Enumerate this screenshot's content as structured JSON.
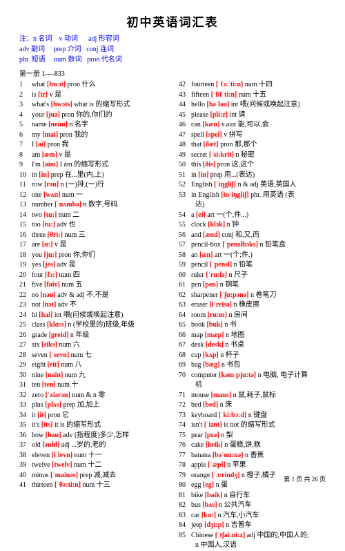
{
  "title": "初中英语词汇表",
  "legend": {
    "line1_parts": [
      {
        "t": "注：",
        "c": "#0000ff"
      },
      {
        "t": "n 名词",
        "c": "#0000ff"
      },
      {
        "t": "    ",
        "c": "#000"
      },
      {
        "t": "v 动词",
        "c": "#0000ff"
      },
      {
        "t": "      ",
        "c": "#000"
      },
      {
        "t": "adj 形容词",
        "c": "#0000ff"
      }
    ],
    "line2_parts": [
      {
        "t": "adv 副词",
        "c": "#0000ff"
      },
      {
        "t": "     ",
        "c": "#000"
      },
      {
        "t": "prep 介词",
        "c": "#0000ff"
      },
      {
        "t": "   ",
        "c": "#000"
      },
      {
        "t": "conj 连词",
        "c": "#0000ff"
      }
    ],
    "line3_parts": [
      {
        "t": "phr. 短语",
        "c": "#0000ff"
      },
      {
        "t": "     ",
        "c": "#000"
      },
      {
        "t": "num 数词",
        "c": "#0000ff"
      },
      {
        "t": "   ",
        "c": "#000"
      },
      {
        "t": "pron 代名词",
        "c": "#0000ff"
      }
    ]
  },
  "section": "第一册  1----833",
  "col1": [
    {
      "n": "1",
      "w": "what",
      "p": "[hwɔt]",
      "r": "pron 什么"
    },
    {
      "n": "2",
      "w": "is",
      "p": "[iz]",
      "r": "v 是"
    },
    {
      "n": "3",
      "w": "what's",
      "p": "[hwɔts]",
      "r": "what is 的缩写形式"
    },
    {
      "n": "4",
      "w": "your",
      "p": "[juə]",
      "r": "pron 你的,你们的"
    },
    {
      "n": "5",
      "w": "name",
      "p": "[neim]",
      "r": "n 名字"
    },
    {
      "n": "6",
      "w": "my",
      "p": "[mai]",
      "r": "pron 我的"
    },
    {
      "n": "7",
      "w": "I",
      "p": "[ai]",
      "r": "pron 我"
    },
    {
      "n": "8",
      "w": "am",
      "p": "[æm]",
      "r": "v 是"
    },
    {
      "n": "9",
      "w": "I'm",
      "p": "[aim]",
      "r": "   I am 的缩写形式"
    },
    {
      "n": "10",
      "w": "in",
      "p": "[in]",
      "r": "prep 在...里(内,上)"
    },
    {
      "n": "11",
      "w": "row",
      "p": "[rəu]",
      "r": "n (一)排,(一)行"
    },
    {
      "n": "12",
      "w": "one",
      "p": "[wʌn]",
      "r": "num 一"
    },
    {
      "n": "13",
      "w": "number",
      "p": "[ˈnʌmbə]",
      "r": "n 数字,号码"
    },
    {
      "n": "14",
      "w": "two",
      "p": "[tu:]",
      "r": "num 二"
    },
    {
      "n": "15",
      "w": "too",
      "p": "[tu:]",
      "r": "adv 也"
    },
    {
      "n": "16",
      "w": "three",
      "p": "[θri:]",
      "r": "num 三"
    },
    {
      "n": "17",
      "w": "are",
      "p": "[ɑ:]",
      "r": "v 是"
    },
    {
      "n": "18",
      "w": "you",
      "p": "[ju:]",
      "r": "pron 你,你们"
    },
    {
      "n": "19",
      "w": "yes",
      "p": "[jes]",
      "r": "adv 是"
    },
    {
      "n": "20",
      "w": "four",
      "p": "[fɔ:]",
      "r": "num 四"
    },
    {
      "n": "21",
      "w": "five",
      "p": "[faiv]",
      "r": "num 五"
    },
    {
      "n": "22",
      "w": "no",
      "p": "[nəu]",
      "r": "adv & adj 不,不是"
    },
    {
      "n": "23",
      "w": "not",
      "p": "[nɔt]",
      "r": "adv 不"
    },
    {
      "n": "24",
      "w": "hi",
      "p": "[hai]",
      "r": "int 喂(问候或唤起注意)"
    },
    {
      "n": "25",
      "w": "class",
      "p": "[klɑ:s]",
      "r": "n (学校里的)班级,年级"
    },
    {
      "n": "26",
      "w": "grade",
      "p": "[greid]",
      "r": "n 年级"
    },
    {
      "n": "27",
      "w": "six",
      "p": "[siks]",
      "r": "num 六"
    },
    {
      "n": "28",
      "w": "seven",
      "p": "[ˈsevn]",
      "r": "num 七"
    },
    {
      "n": "29",
      "w": "eight",
      "p": "[eit]",
      "r": "num 八"
    },
    {
      "n": "30",
      "w": "nine",
      "p": "[nain]",
      "r": "num 九"
    },
    {
      "n": "31",
      "w": "ten",
      "p": "[ten]",
      "r": "num 十"
    },
    {
      "n": "32",
      "w": "zero",
      "p": "[ˈziərəu]",
      "r": "num & n 零"
    },
    {
      "n": "33",
      "w": "plus",
      "p": "[plʌs]",
      "r": "prep 加,加上"
    },
    {
      "n": "34",
      "w": "it",
      "p": "[it]",
      "r": "pron 它"
    },
    {
      "n": "35",
      "w": "it's",
      "p": "[its]",
      "r": "it is 的缩写形式"
    },
    {
      "n": "36",
      "w": "how",
      "p": "[hau]",
      "r": "adv (指程度)多少,怎样"
    },
    {
      "n": "37",
      "w": "old",
      "p": "[əuld]",
      "r": "adj ...岁的,老的"
    },
    {
      "n": "38",
      "w": "eleven",
      "p": "[iˈlevn]",
      "r": "num 十一"
    },
    {
      "n": "39",
      "w": "twelve",
      "p": "[twelv]",
      "r": "num 十二"
    },
    {
      "n": "40",
      "w": "minus",
      "p": "[ˈmainəs]",
      "r": "prep 减,减去"
    },
    {
      "n": "41",
      "w": "thirteen",
      "p": "[ˈθə:ti:n]",
      "r": "num 十三"
    }
  ],
  "col2": [
    {
      "n": "42",
      "w": "fourteen",
      "p": "[ˈfɔ:ˈti:n]",
      "r": "num 十四"
    },
    {
      "n": "43",
      "w": "fifteen",
      "p": "[ˈfifˈti:n]",
      "r": "num 十五"
    },
    {
      "n": "44",
      "w": "hello",
      "p": "[həˈləu]",
      "r": "int 喂(问候或唤起注意)"
    },
    {
      "n": "45",
      "w": "please",
      "p": "[pli:z]",
      "r": "int 请"
    },
    {
      "n": "46",
      "w": "can",
      "p": "[kæn]",
      "r": "v.aux 能,可以,会"
    },
    {
      "n": "47",
      "w": "spell",
      "p": "[spel]",
      "r": "v 拼写"
    },
    {
      "n": "48",
      "w": "that",
      "p": "[ðæt]",
      "r": "pron 那,那个"
    },
    {
      "n": "49",
      "w": "secret",
      "p": "[ˈsi:krit]",
      "r": "n 秘密"
    },
    {
      "n": "50",
      "w": "this",
      "p": "[ðis]",
      "r": "pron 这,这个"
    },
    {
      "n": "51",
      "w": "in",
      "p": "[in]",
      "r": "prep 用...(表达)"
    },
    {
      "n": "52",
      "w": "English",
      "p": "[ˈiŋgliʃ]",
      "r": "n & adj 英语,英国人"
    },
    {
      "n": "53",
      "w": "in English",
      "p": "[inˈiŋgliʃ]",
      "r": "phr. 用英语 (表",
      "cont": "达)"
    },
    {
      "n": "54",
      "w": "a",
      "p": "[ei]",
      "r": "art 一(个,件...)"
    },
    {
      "n": "55",
      "w": "clock",
      "p": "[klɔk]",
      "r": "n 钟"
    },
    {
      "n": "56",
      "w": "and",
      "p": "[ænd]",
      "r": "conj 和,又,而"
    },
    {
      "n": "57",
      "w": "pencil-box",
      "p": "[ˈpenslbɔks]",
      "r": "n 铅笔盒"
    },
    {
      "n": "58",
      "w": "an",
      "p": "[æn]",
      "r": "art 一(个;件.)"
    },
    {
      "n": "59",
      "w": "pencil",
      "p": "[ˈpensl]",
      "r": "n 铅笔"
    },
    {
      "n": "60",
      "w": "ruler",
      "p": "[ˈru:lə]",
      "r": "n 尺子"
    },
    {
      "n": "61",
      "w": "pen",
      "p": "[pen]",
      "r": "n 钢笔"
    },
    {
      "n": "62",
      "w": "sharpener",
      "p": "[ˈʃɑ:pənə]",
      "r": "n 卷笔刀"
    },
    {
      "n": "63",
      "w": "eraser",
      "p": "[iˈreisə]",
      "r": "n 橡皮擦"
    },
    {
      "n": "64",
      "w": "room",
      "p": "[ru:m]",
      "r": "n 房间"
    },
    {
      "n": "65",
      "w": "book",
      "p": "[buk]",
      "r": "n 书"
    },
    {
      "n": "66",
      "w": "map",
      "p": "[mæp]",
      "r": "n 地图"
    },
    {
      "n": "67",
      "w": "desk",
      "p": "[desk]",
      "r": "n 书桌"
    },
    {
      "n": "68",
      "w": "cup",
      "p": "[kʌp]",
      "r": "n 杯子"
    },
    {
      "n": "69",
      "w": "bag",
      "p": "[bæg]",
      "r": "n 书包"
    },
    {
      "n": "70",
      "w": "computer",
      "p": "[kəmˈpju:tə]",
      "r": "n 电脑, 电子计算",
      "cont": "机"
    },
    {
      "n": "71",
      "w": "mouse",
      "p": "[maus]",
      "r": "n 鼠,耗子,鼠标"
    },
    {
      "n": "72",
      "w": "bed",
      "p": "[bed]",
      "r": "n 床"
    },
    {
      "n": "73",
      "w": "keyboard",
      "p": "[ˈki:bɔ:d]",
      "r": "n 键盘"
    },
    {
      "n": "74",
      "w": "isn't",
      "p": "[ˈiznt]",
      "r": "  is not 的缩写形式"
    },
    {
      "n": "75",
      "w": "pear",
      "p": "[pɛə]",
      "r": "n 梨"
    },
    {
      "n": "76",
      "w": "cake",
      "p": "[keik]",
      "r": "n 蛋糕,饼,糕"
    },
    {
      "n": "77",
      "w": "banana",
      "p": "[bəˈnɑ:nə]",
      "r": "n 香蕉"
    },
    {
      "n": "78",
      "w": "apple",
      "p": "[ˈæpl]",
      "r": "n 苹果"
    },
    {
      "n": "79",
      "w": "orange",
      "p": "[ˈɔ:rindʒ]",
      "r": "n 橙子,橘子"
    },
    {
      "n": "80",
      "w": "egg",
      "p": "[eg]",
      "r": "n 蛋"
    },
    {
      "n": "81",
      "w": "bike",
      "p": "[baik]",
      "r": "n 自行车"
    },
    {
      "n": "82",
      "w": "bus",
      "p": "[bʌs]",
      "r": "n 公共汽车"
    },
    {
      "n": "83",
      "w": "car",
      "p": "[kɑ:]",
      "r": "n 汽车,小汽车"
    },
    {
      "n": "84",
      "w": "jeep",
      "p": "[dʒi:p]",
      "r": "n 吉普车"
    },
    {
      "n": "85",
      "w": "Chinese",
      "p": "[ˈtʃaiˈni:z]",
      "r": "adj 中国的,中国人的;",
      "cont": "n 中国人,汉语"
    }
  ],
  "footer": "第 1 页 共 26 页"
}
